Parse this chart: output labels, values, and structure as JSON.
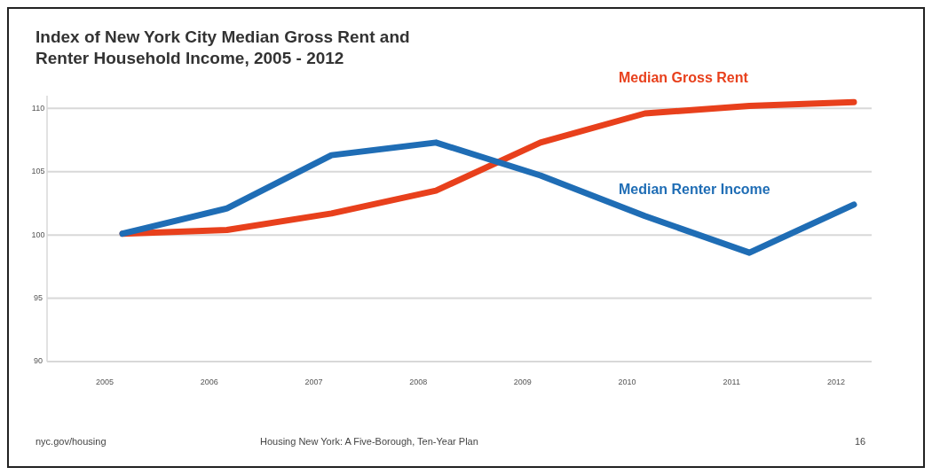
{
  "chart_data": {
    "type": "line",
    "title": "Index of New York City Median Gross Rent and\nRenter Household Income, 2005 - 2012",
    "categories": [
      "2005",
      "2006",
      "2007",
      "2008",
      "2009",
      "2010",
      "2011",
      "2012"
    ],
    "series": [
      {
        "name": "Median Gross Rent",
        "color": "#e8401c",
        "values": [
          100.1,
          100.4,
          101.7,
          103.5,
          107.3,
          109.6,
          110.2,
          110.5
        ]
      },
      {
        "name": "Median Renter Income",
        "color": "#1f6db5",
        "values": [
          100.1,
          102.1,
          106.3,
          107.3,
          104.7,
          101.5,
          98.6,
          102.4
        ]
      }
    ],
    "ylim": [
      90,
      111
    ],
    "yticks": [
      90,
      95,
      100,
      105,
      110
    ],
    "grid": "y",
    "legend": false,
    "marker": "none",
    "line_style": "solid",
    "annotations": [
      "nyc.gov/housing",
      "Housing New York: A Five-Borough, Ten-Year Plan",
      "16"
    ]
  }
}
